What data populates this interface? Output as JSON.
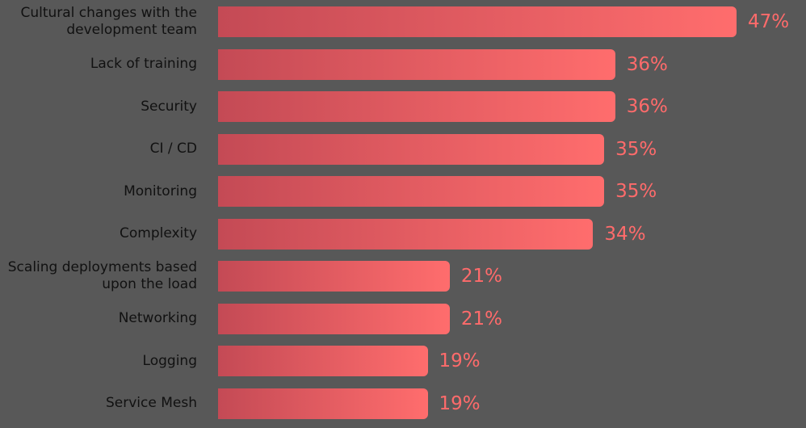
{
  "chart_data": {
    "type": "bar",
    "orientation": "horizontal",
    "categories": [
      "Cultural changes with the development team",
      "Lack of training",
      "Security",
      "CI / CD",
      "Monitoring",
      "Complexity",
      "Scaling deployments based upon the load",
      "Networking",
      "Logging",
      "Service Mesh"
    ],
    "values": [
      47,
      36,
      36,
      35,
      35,
      34,
      21,
      21,
      19,
      19
    ],
    "value_labels": [
      "47%",
      "36%",
      "36%",
      "35%",
      "35%",
      "34%",
      "21%",
      "21%",
      "19%",
      "19%"
    ],
    "gradient": [
      "#c44a55",
      "#ff6d6d"
    ]
  }
}
